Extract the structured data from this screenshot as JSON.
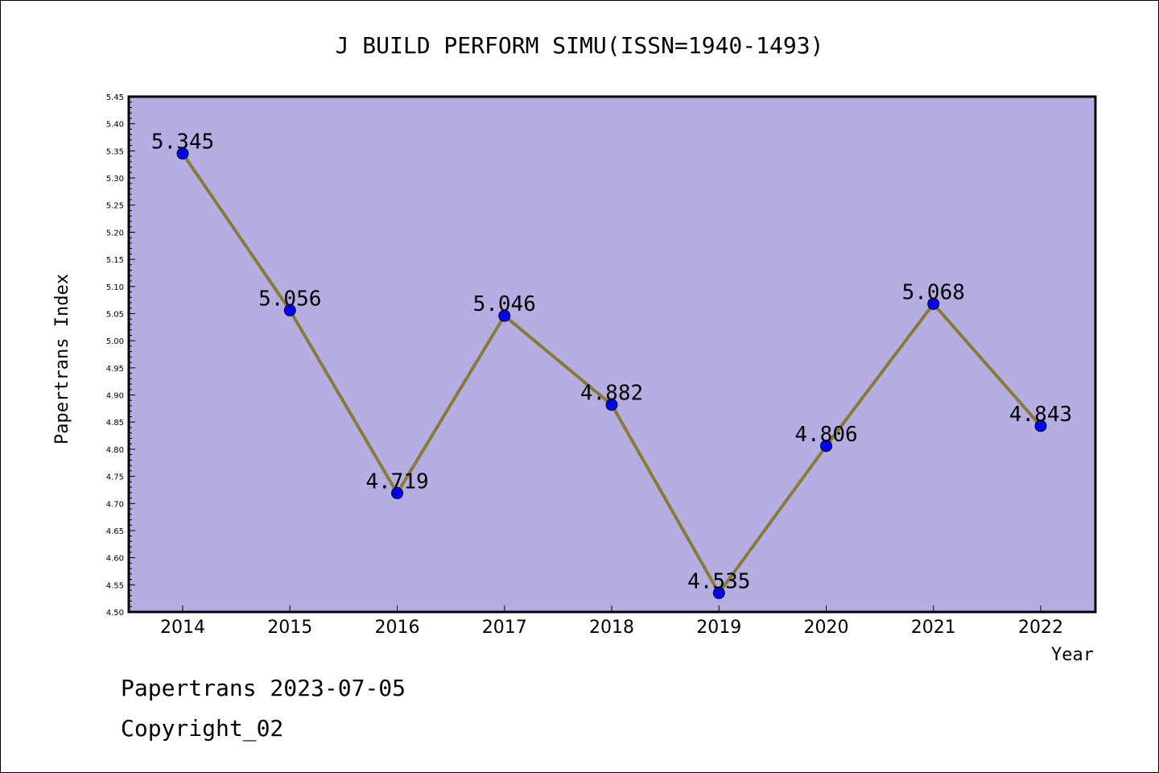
{
  "footer": {
    "line1": "Papertrans 2023-07-05",
    "line2": "Copyright_02"
  },
  "colors": {
    "plot_background": "#b5aee2",
    "line": "#8a7a3a",
    "marker": "#0000ee"
  },
  "chart_data": {
    "type": "line",
    "title": "J BUILD PERFORM SIMU(ISSN=1940-1493)",
    "xlabel": "Year",
    "ylabel": "Papertrans Index",
    "categories": [
      "2014",
      "2015",
      "2016",
      "2017",
      "2018",
      "2019",
      "2020",
      "2021",
      "2022"
    ],
    "values": [
      5.345,
      5.056,
      4.719,
      5.046,
      4.882,
      4.535,
      4.806,
      5.068,
      4.843
    ],
    "data_labels": [
      "5.345",
      "5.056",
      "4.719",
      "5.046",
      "4.882",
      "4.535",
      "4.806",
      "5.068",
      "4.843"
    ],
    "ylim": [
      4.5,
      5.45
    ],
    "yticks": [
      "4.50",
      "4.55",
      "4.60",
      "4.65",
      "4.70",
      "4.75",
      "4.80",
      "4.85",
      "4.90",
      "4.95",
      "5.00",
      "5.05",
      "5.10",
      "5.15",
      "5.20",
      "5.25",
      "5.30",
      "5.35",
      "5.40",
      "5.45"
    ],
    "grid": false,
    "legend": "none"
  }
}
